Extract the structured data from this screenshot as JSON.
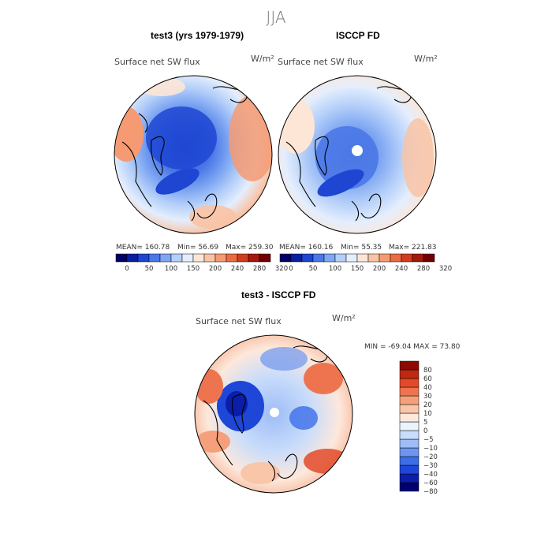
{
  "chart_data": [
    {
      "type": "heatmap",
      "title": "test3 (yrs 1979-1979)",
      "variable": "Surface net SW flux",
      "units": "W/m²",
      "projection": "north polar stereographic",
      "stats": {
        "mean_text": "MEAN= 160.78",
        "min_text": "Min=  56.69",
        "max_text": "Max= 259.30",
        "mean": 160.78,
        "min": 56.69,
        "max": 259.3
      },
      "colorbar": {
        "orientation": "horizontal",
        "levels": [
          0,
          50,
          100,
          150,
          200,
          240,
          280,
          320
        ],
        "tick_labels": [
          "0",
          "50",
          "100",
          "150",
          "200",
          "240",
          "280",
          "320"
        ]
      }
    },
    {
      "type": "heatmap",
      "title": "ISCCP FD",
      "variable": "Surface net SW flux",
      "units": "W/m²",
      "projection": "north polar stereographic",
      "stats": {
        "mean_text": "MEAN= 160.16",
        "min_text": "Min=  55.35",
        "max_text": "Max= 221.83",
        "mean": 160.16,
        "min": 55.35,
        "max": 221.83
      },
      "colorbar": {
        "orientation": "horizontal",
        "levels": [
          0,
          50,
          100,
          150,
          200,
          240,
          280,
          320
        ],
        "tick_labels": [
          "0",
          "50",
          "100",
          "150",
          "200",
          "240",
          "280",
          "320"
        ]
      }
    },
    {
      "type": "heatmap",
      "title": "test3 - ISCCP FD",
      "variable": "Surface net SW flux",
      "units": "W/m²",
      "projection": "north polar stereographic",
      "stats": {
        "range_text": "MIN = -69.04 MAX =  73.80",
        "min": -69.04,
        "max": 73.8
      },
      "colorbar": {
        "orientation": "vertical",
        "tick_labels": [
          "80",
          "60",
          "40",
          "30",
          "20",
          "10",
          "5",
          "0",
          "−5",
          "−10",
          "−20",
          "−30",
          "−40",
          "−60",
          "−80"
        ]
      }
    }
  ],
  "season": "JJA",
  "colors": {
    "abs_scale": [
      "#000066",
      "#0a1ea0",
      "#1e46d2",
      "#4a78e6",
      "#7ea6f2",
      "#b4cff9",
      "#e4eefd",
      "#fde6d6",
      "#f9c3a5",
      "#f59a72",
      "#ea6a44",
      "#d23c1e",
      "#a5190a",
      "#700000"
    ],
    "diff_scale": [
      "#000070",
      "#0a1eaa",
      "#1e46d7",
      "#3c6ee8",
      "#6e96f0",
      "#9ebcf6",
      "#c8dcfb",
      "#ebf3fe",
      "#fde8dc",
      "#f9c6aa",
      "#f5a07a",
      "#ee7450",
      "#e24a2a",
      "#c02810",
      "#8c0a00"
    ]
  }
}
